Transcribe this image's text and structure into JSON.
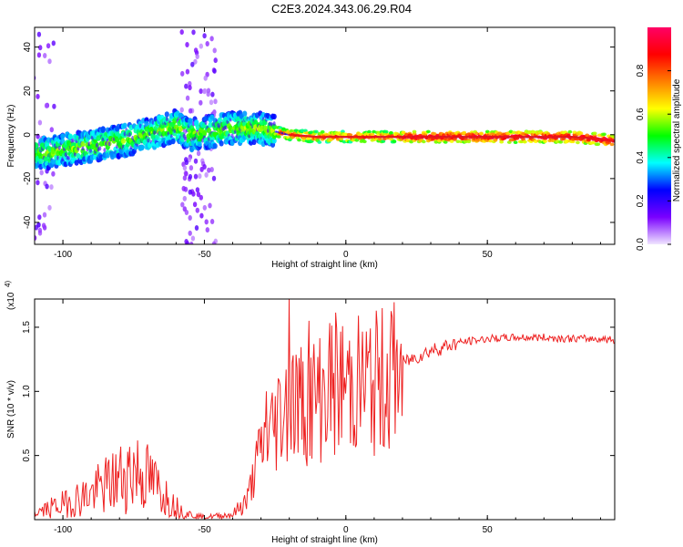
{
  "title": "C2E3.2024.343.06.29.R04",
  "chart_data": [
    {
      "type": "heatmap",
      "xlabel": "Height of straight line (km)",
      "ylabel": "Frequency (Hz)",
      "xlim": [
        -110,
        95
      ],
      "ylim": [
        -50,
        49
      ],
      "xticks": [
        -100,
        -50,
        0,
        50
      ],
      "yticks": [
        -40,
        -20,
        0,
        20,
        40
      ],
      "colorbar": {
        "label": "Normalized spectral amplitude",
        "range": [
          0,
          1
        ],
        "ticks": [
          "0.0",
          "0.2",
          "0.4",
          "0.6",
          "0.8"
        ],
        "colors": [
          "#f0e6ff",
          "#7a00ff",
          "#0000ff",
          "#00ffff",
          "#00ff00",
          "#ffff00",
          "#ff7f00",
          "#ff0000",
          "#ff0066"
        ]
      },
      "ridge": [
        [
          -110,
          -9
        ],
        [
          -100,
          -7
        ],
        [
          -90,
          -5
        ],
        [
          -80,
          -3
        ],
        [
          -70,
          0
        ],
        [
          -60,
          4
        ],
        [
          -55,
          0
        ],
        [
          -50,
          1
        ],
        [
          -40,
          3
        ],
        [
          -30,
          3
        ],
        [
          -20,
          0
        ],
        [
          -10,
          -1
        ],
        [
          0,
          -1
        ],
        [
          10,
          -1
        ],
        [
          20,
          -1
        ],
        [
          40,
          -1
        ],
        [
          60,
          -1
        ],
        [
          80,
          -1
        ],
        [
          90,
          -2
        ],
        [
          95,
          -3
        ]
      ]
    },
    {
      "type": "line",
      "xlabel": "Height of straight line (km)",
      "ylabel": "SNR (10 * v/v)",
      "y_multiplier": "(x10",
      "y_exponent": "4",
      "xlim": [
        -110,
        95
      ],
      "ylim": [
        0,
        1.72
      ],
      "xticks": [
        -100,
        -50,
        0,
        50
      ],
      "yticks": [
        "0.5",
        "1.0",
        "1.5"
      ],
      "series_color": "#ee2222",
      "envelope": [
        [
          -110,
          0.05
        ],
        [
          -100,
          0.12
        ],
        [
          -90,
          0.2
        ],
        [
          -80,
          0.32
        ],
        [
          -75,
          0.4
        ],
        [
          -70,
          0.32
        ],
        [
          -65,
          0.22
        ],
        [
          -60,
          0.1
        ],
        [
          -55,
          0.04
        ],
        [
          -50,
          0.02
        ],
        [
          -40,
          0.04
        ],
        [
          -35,
          0.15
        ],
        [
          -30,
          0.55
        ],
        [
          -25,
          0.75
        ],
        [
          -20,
          0.95
        ],
        [
          -15,
          0.9
        ],
        [
          -10,
          0.95
        ],
        [
          -5,
          1.05
        ],
        [
          0,
          1.05
        ],
        [
          5,
          1.05
        ],
        [
          10,
          1.05
        ],
        [
          15,
          1.1
        ],
        [
          20,
          1.22
        ],
        [
          30,
          1.32
        ],
        [
          40,
          1.38
        ],
        [
          50,
          1.41
        ],
        [
          60,
          1.42
        ],
        [
          70,
          1.42
        ],
        [
          80,
          1.41
        ],
        [
          90,
          1.41
        ],
        [
          95,
          1.4
        ]
      ],
      "spikes": [
        [
          -20,
          1.72
        ],
        [
          -13,
          1.55
        ],
        [
          -24,
          1.1
        ],
        [
          -28,
          1.0
        ]
      ]
    }
  ]
}
